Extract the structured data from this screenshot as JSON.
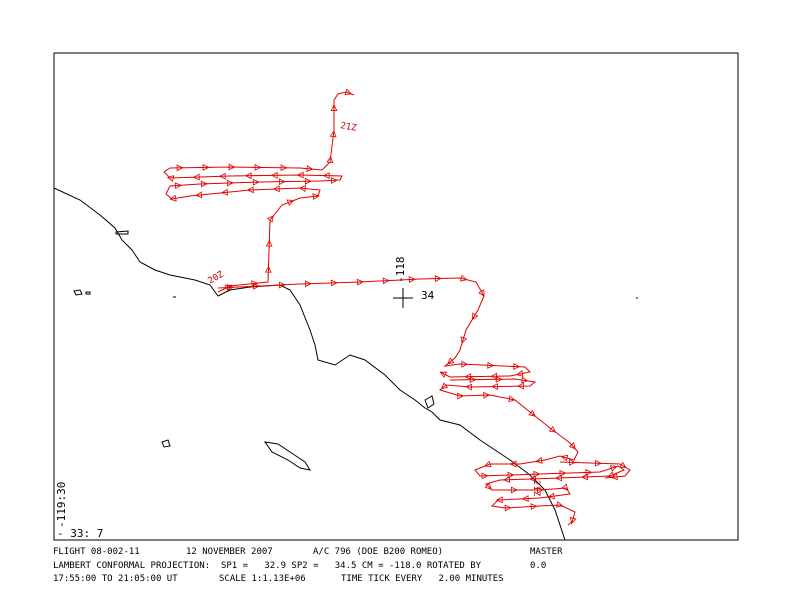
{
  "map": {
    "grid_labels": {
      "lon_center": "-118",
      "lat_center": "34",
      "lon_corner": "-119:30",
      "lat_corner": "- 33: 7"
    },
    "time_labels": [
      "21Z",
      "20Z"
    ],
    "footer": {
      "line1": [
        "FLIGHT 08-002-11",
        "12 NOVEMBER 2007",
        "A/C 796 (DOE B200 ROMEO)",
        "MASTER"
      ],
      "line2": [
        "LAMBERT CONFORMAL PROJECTION:  SP1 =   32.9 SP2 =   34.5 CM = -118.0 ROTATED BY",
        "0.0"
      ],
      "line3": [
        "17:55:00 TO 21:05:00 UT",
        "SCALE 1:1.13E+06",
        "TIME TICK EVERY   2.00 MINUTES"
      ]
    }
  }
}
